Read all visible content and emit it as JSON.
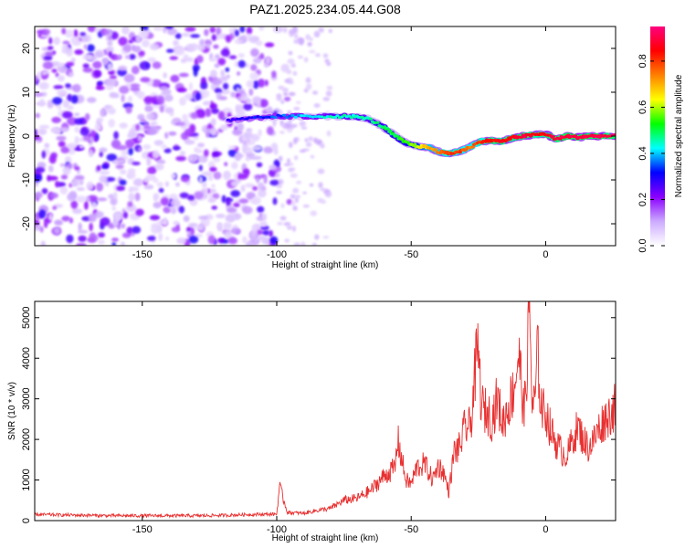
{
  "figure_title": "PAZ1.2025.234.05.44.G08",
  "chart_data": [
    {
      "type": "heatmap",
      "panel": "spectrogram",
      "xlabel": "Height of straight line (km)",
      "ylabel": "Frequency (Hz)",
      "xlim": [
        -190,
        26
      ],
      "ylim": [
        -25,
        25
      ],
      "xticks": [
        -150,
        -100,
        -50,
        0
      ],
      "yticks": [
        -20,
        -10,
        0,
        10,
        20
      ],
      "colorbar": {
        "label": "Normalized spectral amplitude",
        "range": [
          0,
          0.95
        ],
        "ticks": [
          0.0,
          0.2,
          0.4,
          0.6,
          0.8
        ],
        "tick_labels": [
          "0.0",
          "0.2",
          "0.4",
          "0.6",
          "0.8"
        ],
        "colors": [
          "#ffffff",
          "#ccaaff",
          "#8b00ff",
          "#0000ff",
          "#00ffff",
          "#00ff00",
          "#ffff00",
          "#ff8000",
          "#ff0000",
          "#ff0080"
        ]
      },
      "ridge": {
        "description": "Signal frequency track vs height",
        "x": [
          -118,
          -110,
          -100,
          -90,
          -80,
          -72,
          -66,
          -60,
          -56,
          -52,
          -48,
          -44,
          -40,
          -36,
          -32,
          -28,
          -24,
          -20,
          -16,
          -12,
          -8,
          -4,
          0,
          4,
          8,
          12,
          16,
          20,
          26
        ],
        "y": [
          3.5,
          4,
          4.5,
          4.5,
          4.5,
          4.5,
          4,
          2,
          0,
          -1.5,
          -2.3,
          -2.5,
          -3.5,
          -4,
          -3.5,
          -2.5,
          -1.2,
          -1,
          -1.2,
          -0.3,
          0,
          0.3,
          0.5,
          -0.7,
          0,
          -0.3,
          0,
          0,
          0
        ],
        "amplitude": [
          0.25,
          0.3,
          0.35,
          0.4,
          0.45,
          0.45,
          0.45,
          0.5,
          0.5,
          0.55,
          0.6,
          0.7,
          0.75,
          0.8,
          0.8,
          0.75,
          0.8,
          0.85,
          0.85,
          0.85,
          0.9,
          0.85,
          0.85,
          0.9,
          0.9,
          0.9,
          0.9,
          0.9,
          0.9
        ]
      },
      "noise": {
        "description": "Scattered low-amplitude noise blobs",
        "x_range": [
          -190,
          -95
        ],
        "y_range": [
          -25,
          25
        ],
        "amplitude_range": [
          0.05,
          0.3
        ]
      }
    },
    {
      "type": "line",
      "panel": "snr",
      "xlabel": "Height of straight line (km)",
      "ylabel": "SNR (10 * v/v)",
      "xlim": [
        -190,
        26
      ],
      "ylim": [
        0,
        5400
      ],
      "xticks": [
        -150,
        -100,
        -50,
        0
      ],
      "yticks": [
        0,
        1000,
        2000,
        3000,
        4000,
        5000
      ],
      "line_color": "#e83030",
      "series": [
        {
          "name": "SNR",
          "x": [
            -190,
            -180,
            -170,
            -160,
            -150,
            -140,
            -130,
            -120,
            -110,
            -100,
            -99,
            -96,
            -90,
            -85,
            -80,
            -75,
            -70,
            -65,
            -60,
            -56,
            -55,
            -52,
            -50,
            -48,
            -45,
            -42,
            -40,
            -38,
            -36,
            -34,
            -32,
            -30,
            -28,
            -26,
            -25,
            -24,
            -23,
            -22,
            -20,
            -18,
            -16,
            -14,
            -12,
            -10,
            -8,
            -7,
            -6,
            -5,
            -4,
            -3,
            -2,
            -1,
            0,
            2,
            4,
            6,
            8,
            10,
            12,
            14,
            16,
            18,
            20,
            22,
            24,
            26
          ],
          "y": [
            150,
            140,
            130,
            120,
            120,
            120,
            120,
            130,
            150,
            160,
            850,
            200,
            180,
            250,
            300,
            500,
            550,
            750,
            1100,
            1300,
            2000,
            1000,
            900,
            1300,
            1400,
            1000,
            1350,
            1200,
            700,
            1700,
            1800,
            2300,
            2300,
            3800,
            4200,
            2900,
            2700,
            2700,
            2500,
            3000,
            2400,
            2800,
            3200,
            4100,
            2600,
            3700,
            5300,
            2800,
            2900,
            4200,
            3000,
            2700,
            2700,
            2200,
            1900,
            1700,
            1600,
            2000,
            2300,
            2000,
            1800,
            2000,
            2300,
            2500,
            2650,
            2800
          ]
        }
      ]
    }
  ]
}
